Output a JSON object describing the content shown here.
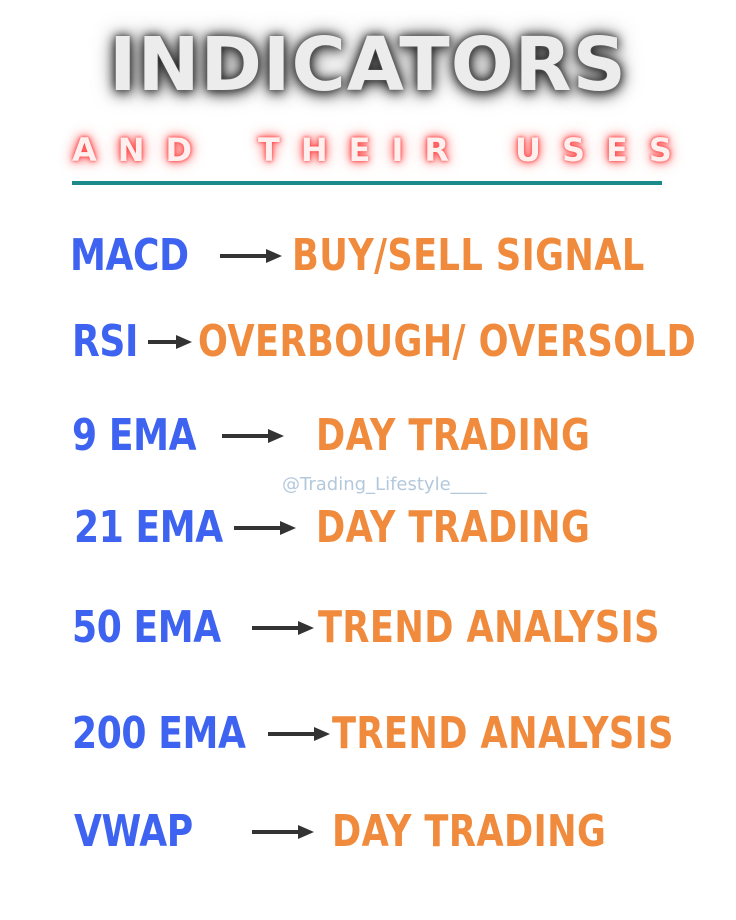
{
  "title": "INDICATORS",
  "subtitle": "AND THEIR USES",
  "watermark": "@Trading_Lifestyle____",
  "colors": {
    "indicator": "#3d63f0",
    "use": "#f08a3c",
    "arrow": "#333333",
    "underline": "#1c8a8a"
  },
  "rows": [
    {
      "indicator": "MACD",
      "use": "BUY/SELL SIGNAL"
    },
    {
      "indicator": "RSI",
      "use": "OVERBOUGH/ OVERSOLD"
    },
    {
      "indicator": "9 EMA",
      "use": "DAY TRADING"
    },
    {
      "indicator": "21 EMA",
      "use": "DAY TRADING"
    },
    {
      "indicator": "50 EMA",
      "use": "TREND ANALYSIS"
    },
    {
      "indicator": "200 EMA",
      "use": "TREND ANALYSIS"
    },
    {
      "indicator": "VWAP",
      "use": "DAY TRADING"
    }
  ]
}
